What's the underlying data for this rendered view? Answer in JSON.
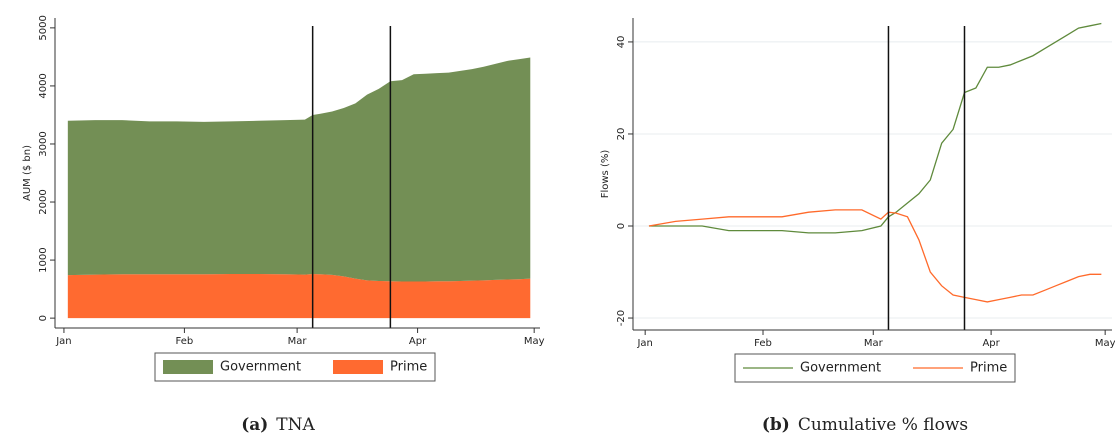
{
  "chart_data": [
    {
      "type": "stacked_area",
      "label": "(a)",
      "caption": "TNA",
      "ylabel": "AUM ($ bn)",
      "x": [
        1,
        8,
        15,
        22,
        29,
        36,
        43,
        50,
        57,
        62,
        64,
        66,
        69,
        72,
        75,
        78,
        81,
        84,
        87,
        90,
        93,
        96,
        99,
        102,
        105,
        108,
        111,
        114,
        117,
        120
      ],
      "series": [
        {
          "name": "Government",
          "color": "#738f55",
          "values": [
            2660,
            2660,
            2655,
            2635,
            2635,
            2625,
            2630,
            2640,
            2655,
            2670,
            2740,
            2765,
            2815,
            2900,
            3020,
            3200,
            3310,
            3445,
            3470,
            3570,
            3580,
            3585,
            3595,
            3620,
            3645,
            3680,
            3720,
            3765,
            3790,
            3810
          ]
        },
        {
          "name": "Prime",
          "color": "#ff6a30",
          "values": [
            740,
            750,
            755,
            755,
            755,
            755,
            760,
            760,
            755,
            750,
            760,
            755,
            745,
            720,
            680,
            650,
            640,
            635,
            630,
            630,
            630,
            635,
            635,
            640,
            645,
            650,
            660,
            665,
            670,
            680
          ]
        }
      ],
      "xlim": [
        -2.3,
        122.5
      ],
      "xticks": [
        {
          "value": 0,
          "label": "Jan"
        },
        {
          "value": 31,
          "label": "Feb"
        },
        {
          "value": 60,
          "label": "Mar"
        },
        {
          "value": 91,
          "label": "Apr"
        },
        {
          "value": 121,
          "label": "May"
        }
      ],
      "ylim": [
        -170,
        5170
      ],
      "yticks": [
        0,
        1000,
        2000,
        3000,
        4000,
        5000
      ],
      "vlines": [
        64,
        84
      ],
      "grid": false
    },
    {
      "type": "line",
      "label": "(b)",
      "caption": "Cumulative % flows",
      "ylabel": "Flows (%)",
      "x": [
        1,
        8,
        15,
        22,
        29,
        36,
        43,
        50,
        57,
        62,
        64,
        66,
        69,
        72,
        75,
        78,
        81,
        84,
        87,
        90,
        93,
        96,
        99,
        102,
        105,
        108,
        111,
        114,
        117,
        120
      ],
      "series": [
        {
          "name": "Government",
          "color": "#5f8a3c",
          "values": [
            0,
            0,
            0,
            -1,
            -1,
            -1,
            -1.5,
            -1.5,
            -1,
            0,
            2,
            3,
            5,
            7,
            10,
            18,
            21,
            29,
            30,
            34.5,
            34.5,
            35,
            36,
            37,
            38.5,
            40,
            41.5,
            43,
            43.5,
            44
          ]
        },
        {
          "name": "Prime",
          "color": "#ff6a2b",
          "values": [
            0,
            1,
            1.5,
            2,
            2,
            2,
            3,
            3.5,
            3.5,
            1.5,
            3,
            2.8,
            2,
            -3,
            -10,
            -13,
            -15,
            -15.5,
            -16,
            -16.5,
            -16,
            -15.5,
            -15,
            -15,
            -14,
            -13,
            -12,
            -11,
            -10.5,
            -10.5
          ]
        }
      ],
      "xlim": [
        -3.2,
        122.8
      ],
      "xticks": [
        {
          "value": 0,
          "label": "Jan"
        },
        {
          "value": 31,
          "label": "Feb"
        },
        {
          "value": 60,
          "label": "Mar"
        },
        {
          "value": 91,
          "label": "Apr"
        },
        {
          "value": 121,
          "label": "May"
        }
      ],
      "ylim": [
        -22.6,
        45.2
      ],
      "yticks": [
        -20,
        0,
        20,
        40
      ],
      "vlines": [
        64,
        84
      ],
      "grid": true
    }
  ]
}
